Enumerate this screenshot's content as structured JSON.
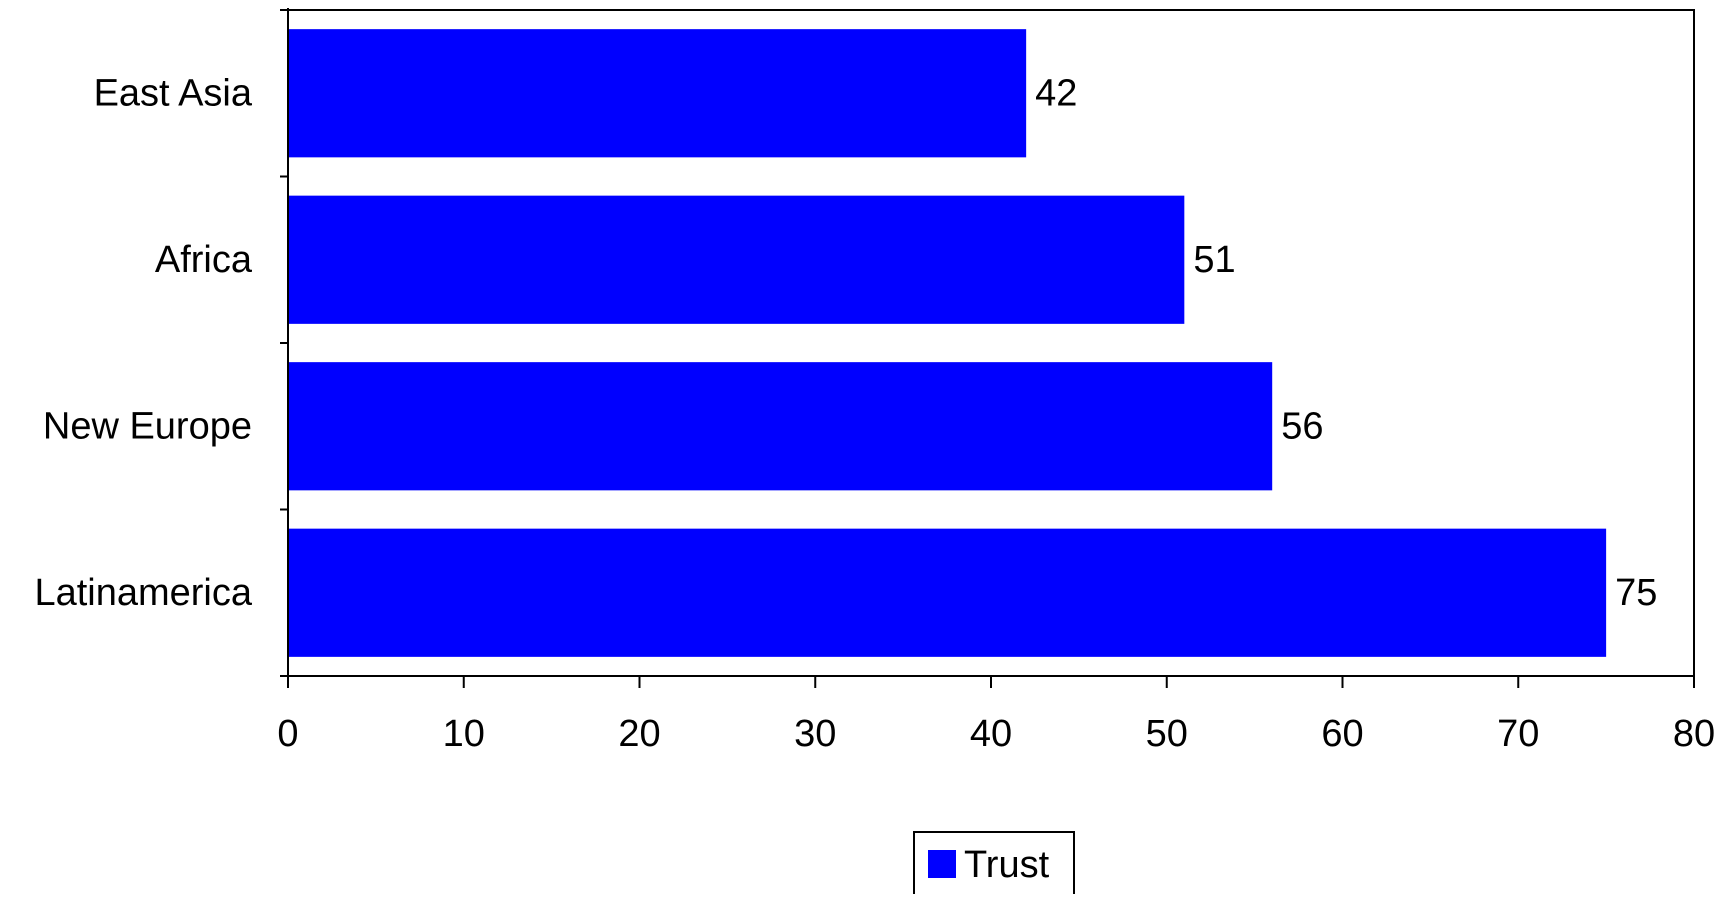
{
  "chart_data": {
    "type": "bar",
    "orientation": "horizontal",
    "categories": [
      "East Asia",
      "Africa",
      "New Europe",
      "Latinamerica"
    ],
    "series": [
      {
        "name": "Trust",
        "values": [
          42,
          51,
          56,
          75
        ],
        "color": "#0000FF"
      }
    ],
    "data_labels": [
      "42",
      "51",
      "56",
      "75"
    ],
    "x_ticks": [
      "0",
      "10",
      "20",
      "30",
      "40",
      "50",
      "60",
      "70",
      "80"
    ],
    "xlim": [
      0,
      80
    ],
    "title": "",
    "xlabel": "",
    "ylabel": "",
    "grid": false,
    "legend": {
      "position": "bottom",
      "entries": [
        "Trust"
      ]
    }
  }
}
